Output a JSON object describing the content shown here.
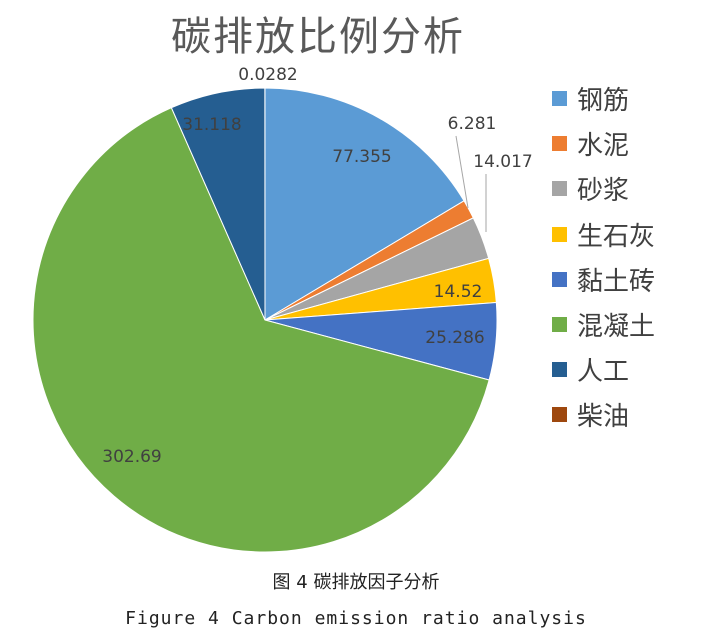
{
  "chart_data": {
    "type": "pie",
    "title": "碳排放比例分析",
    "legend_position": "right",
    "categories": [
      "钢筋",
      "水泥",
      "砂浆",
      "生石灰",
      "黏土砖",
      "混凝土",
      "人工",
      "柴油"
    ],
    "values": [
      77.355,
      6.281,
      14.017,
      14.52,
      25.286,
      302.69,
      31.118,
      0.0282
    ],
    "value_labels": [
      "77.355",
      "6.281",
      "14.017",
      "14.52",
      "25.286",
      "302.69",
      "31.118",
      "0.0282"
    ],
    "colors": [
      "#5B9BD5",
      "#ED7D31",
      "#A5A5A5",
      "#FFC000",
      "#4472C4",
      "#70AD47",
      "#255E91",
      "#9E480E"
    ]
  },
  "caption": {
    "cn": "图 4  碳排放因子分析",
    "en": "Figure 4  Carbon emission ratio analysis"
  }
}
